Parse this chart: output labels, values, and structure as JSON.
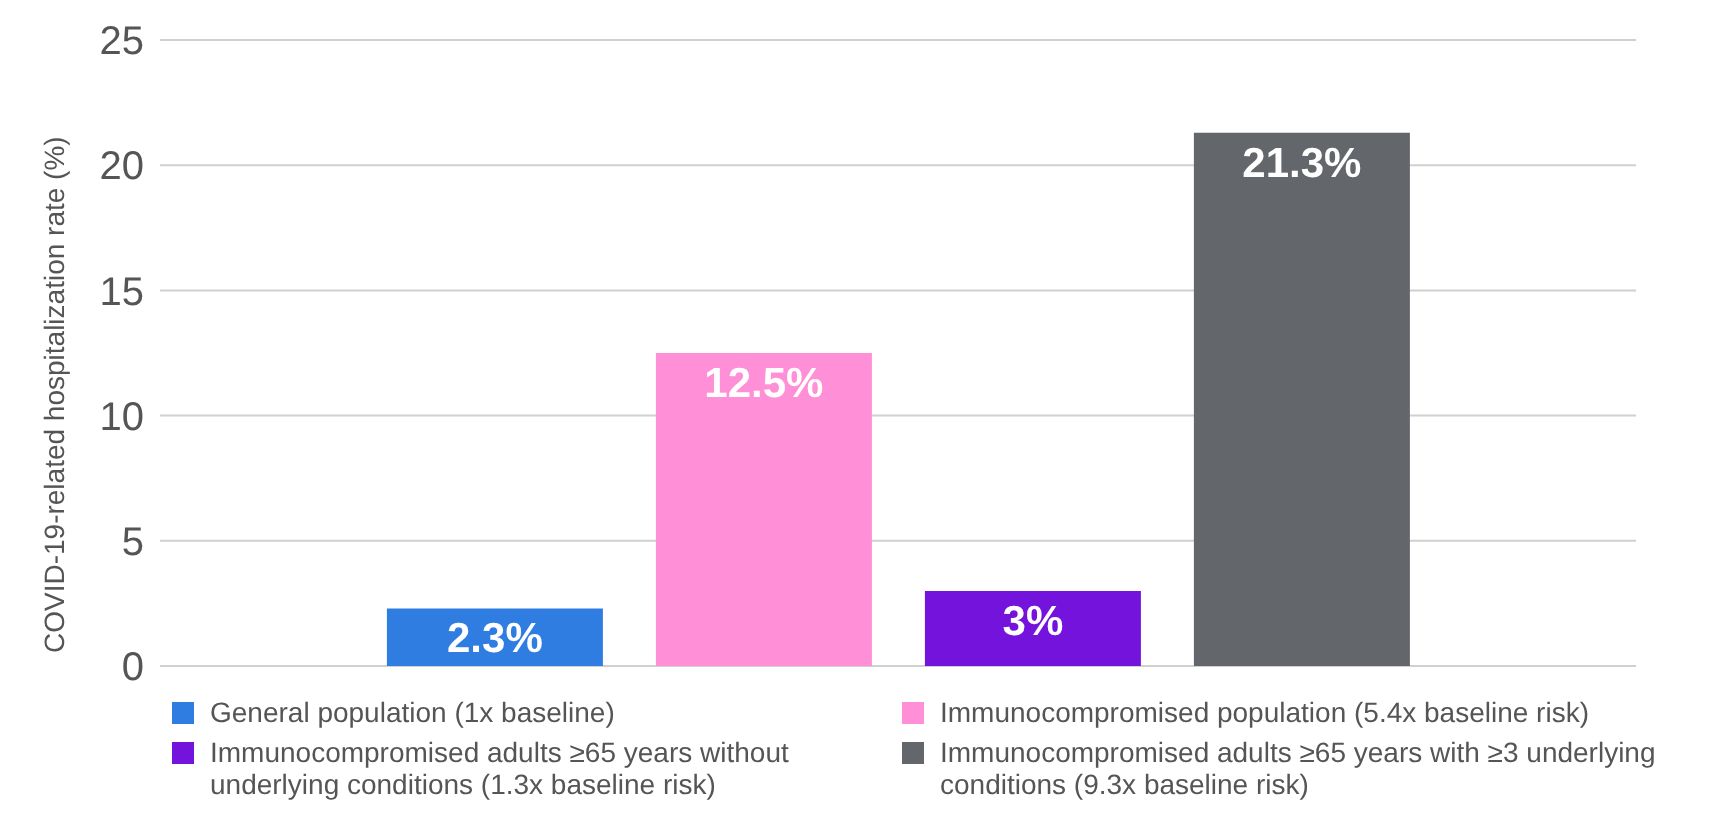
{
  "chart_data": {
    "type": "bar",
    "ylabel": "COVID-19-related hospitalization rate (%)",
    "categories": [
      null,
      null,
      null,
      null
    ],
    "series": [
      {
        "name": "General population (1x baseline)",
        "color": "#2f7de1",
        "values": [
          2.3,
          null,
          null,
          null
        ],
        "value_labels": [
          "2.3%",
          null,
          null,
          null
        ]
      },
      {
        "name": "Immunocompromised population (5.4x baseline risk)",
        "color": "#ff8fd6",
        "values": [
          null,
          12.5,
          null,
          null
        ],
        "value_labels": [
          null,
          "12.5%",
          null,
          null
        ]
      },
      {
        "name": "Immunocompromised adults ≥65 years without underlying conditions (1.3x baseline risk)",
        "color": "#7413dc",
        "values": [
          null,
          null,
          3,
          null
        ],
        "value_labels": [
          null,
          null,
          "3%",
          null
        ]
      },
      {
        "name": "Immunocompromised adults ≥65 years with ≥3 underlying conditions (9.3x baseline risk)",
        "color": "#63666a",
        "values": [
          null,
          null,
          null,
          21.3
        ],
        "value_labels": [
          null,
          null,
          null,
          "21.3%"
        ]
      }
    ],
    "ylim": [
      0,
      25
    ],
    "yticks": [
      0,
      5,
      10,
      15,
      20,
      25
    ],
    "grid": "y",
    "legend": "bottom"
  }
}
